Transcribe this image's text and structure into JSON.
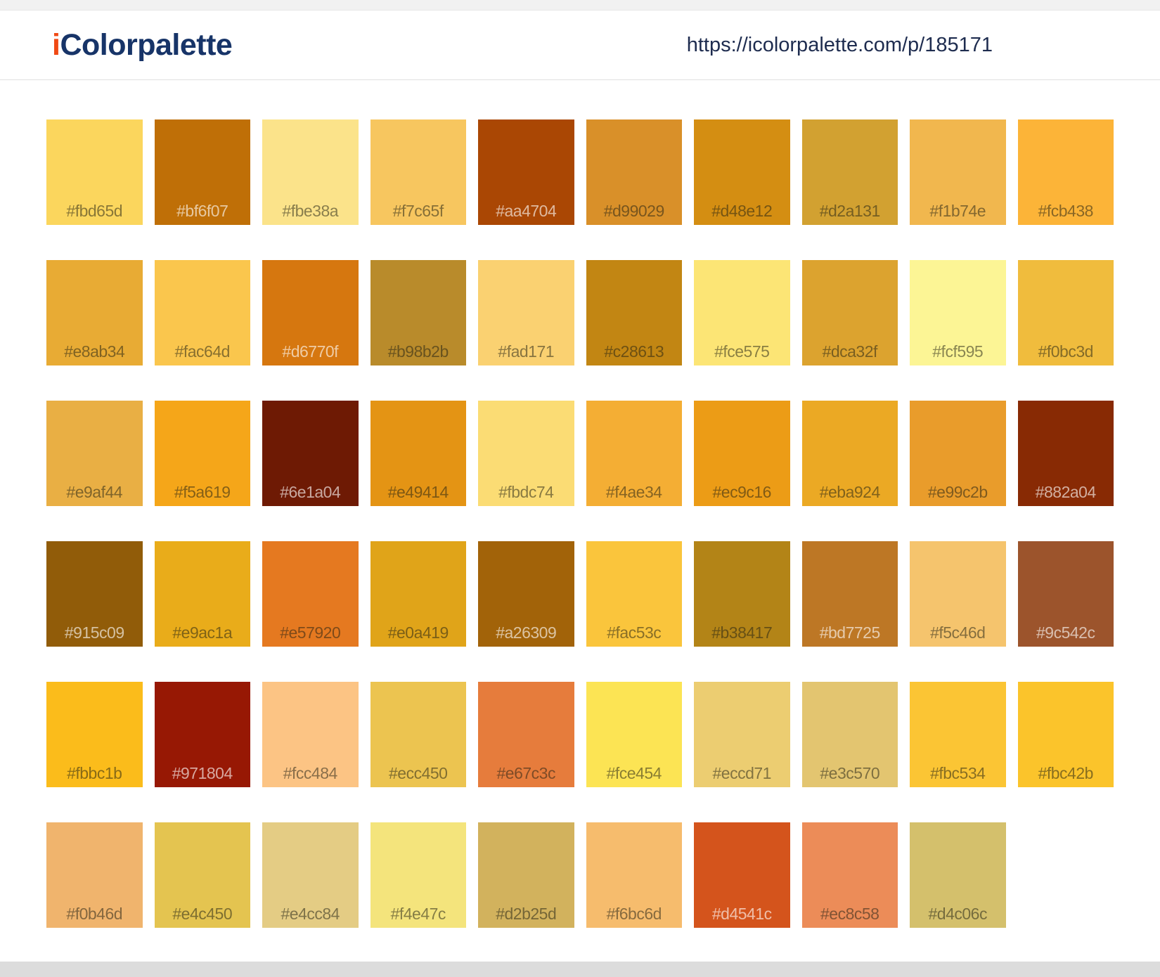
{
  "header": {
    "brand_prefix": "i",
    "brand_name": "Colorpalette",
    "url": "https://icolorpalette.com/p/185171",
    "brand_accent_color": "#f04a15",
    "brand_text_color": "#173468",
    "url_text_color": "#1e2c4f"
  },
  "palette": {
    "swatches": [
      "#fbd65d",
      "#bf6f07",
      "#fbe38a",
      "#f7c65f",
      "#aa4704",
      "#d99029",
      "#d48e12",
      "#d2a131",
      "#f1b74e",
      "#fcb438",
      "#e8ab34",
      "#fac64d",
      "#d6770f",
      "#b98b2b",
      "#fad171",
      "#c28613",
      "#fce575",
      "#dca32f",
      "#fcf595",
      "#f0bc3d",
      "#e9af44",
      "#f5a619",
      "#6e1a04",
      "#e49414",
      "#fbdc74",
      "#f4ae34",
      "#ec9c16",
      "#eba924",
      "#e99c2b",
      "#882a04",
      "#915c09",
      "#e9ac1a",
      "#e57920",
      "#e0a419",
      "#a26309",
      "#fac53c",
      "#b38417",
      "#bd7725",
      "#f5c46d",
      "#9c542c",
      "#fbbc1b",
      "#971804",
      "#fcc484",
      "#ecc450",
      "#e67c3c",
      "#fce454",
      "#eccd71",
      "#e3c570",
      "#fbc534",
      "#fbc42b",
      "#f0b46d",
      "#e4c450",
      "#e4cc84",
      "#f4e47c",
      "#d2b25d",
      "#f6bc6d",
      "#d4541c",
      "#ec8c58",
      "#d4c06c"
    ]
  }
}
